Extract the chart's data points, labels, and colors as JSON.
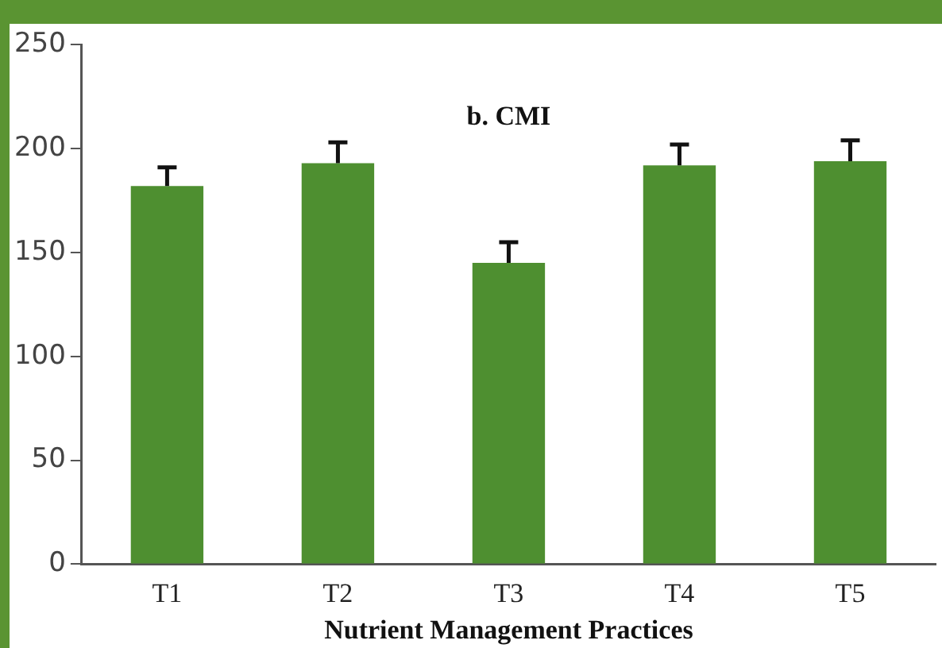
{
  "chart_data": {
    "type": "bar",
    "title": "b. CMI",
    "xlabel": "Nutrient Management Practices",
    "categories": [
      "T1",
      "T2",
      "T3",
      "T4",
      "T5"
    ],
    "values": [
      182,
      193,
      145,
      192,
      194
    ],
    "errors": [
      9,
      10,
      10,
      10,
      10
    ],
    "color": "#4e8f30",
    "ylim": [
      0,
      250
    ],
    "yticks": [
      0,
      50,
      100,
      150,
      200,
      250
    ],
    "grid": false
  }
}
